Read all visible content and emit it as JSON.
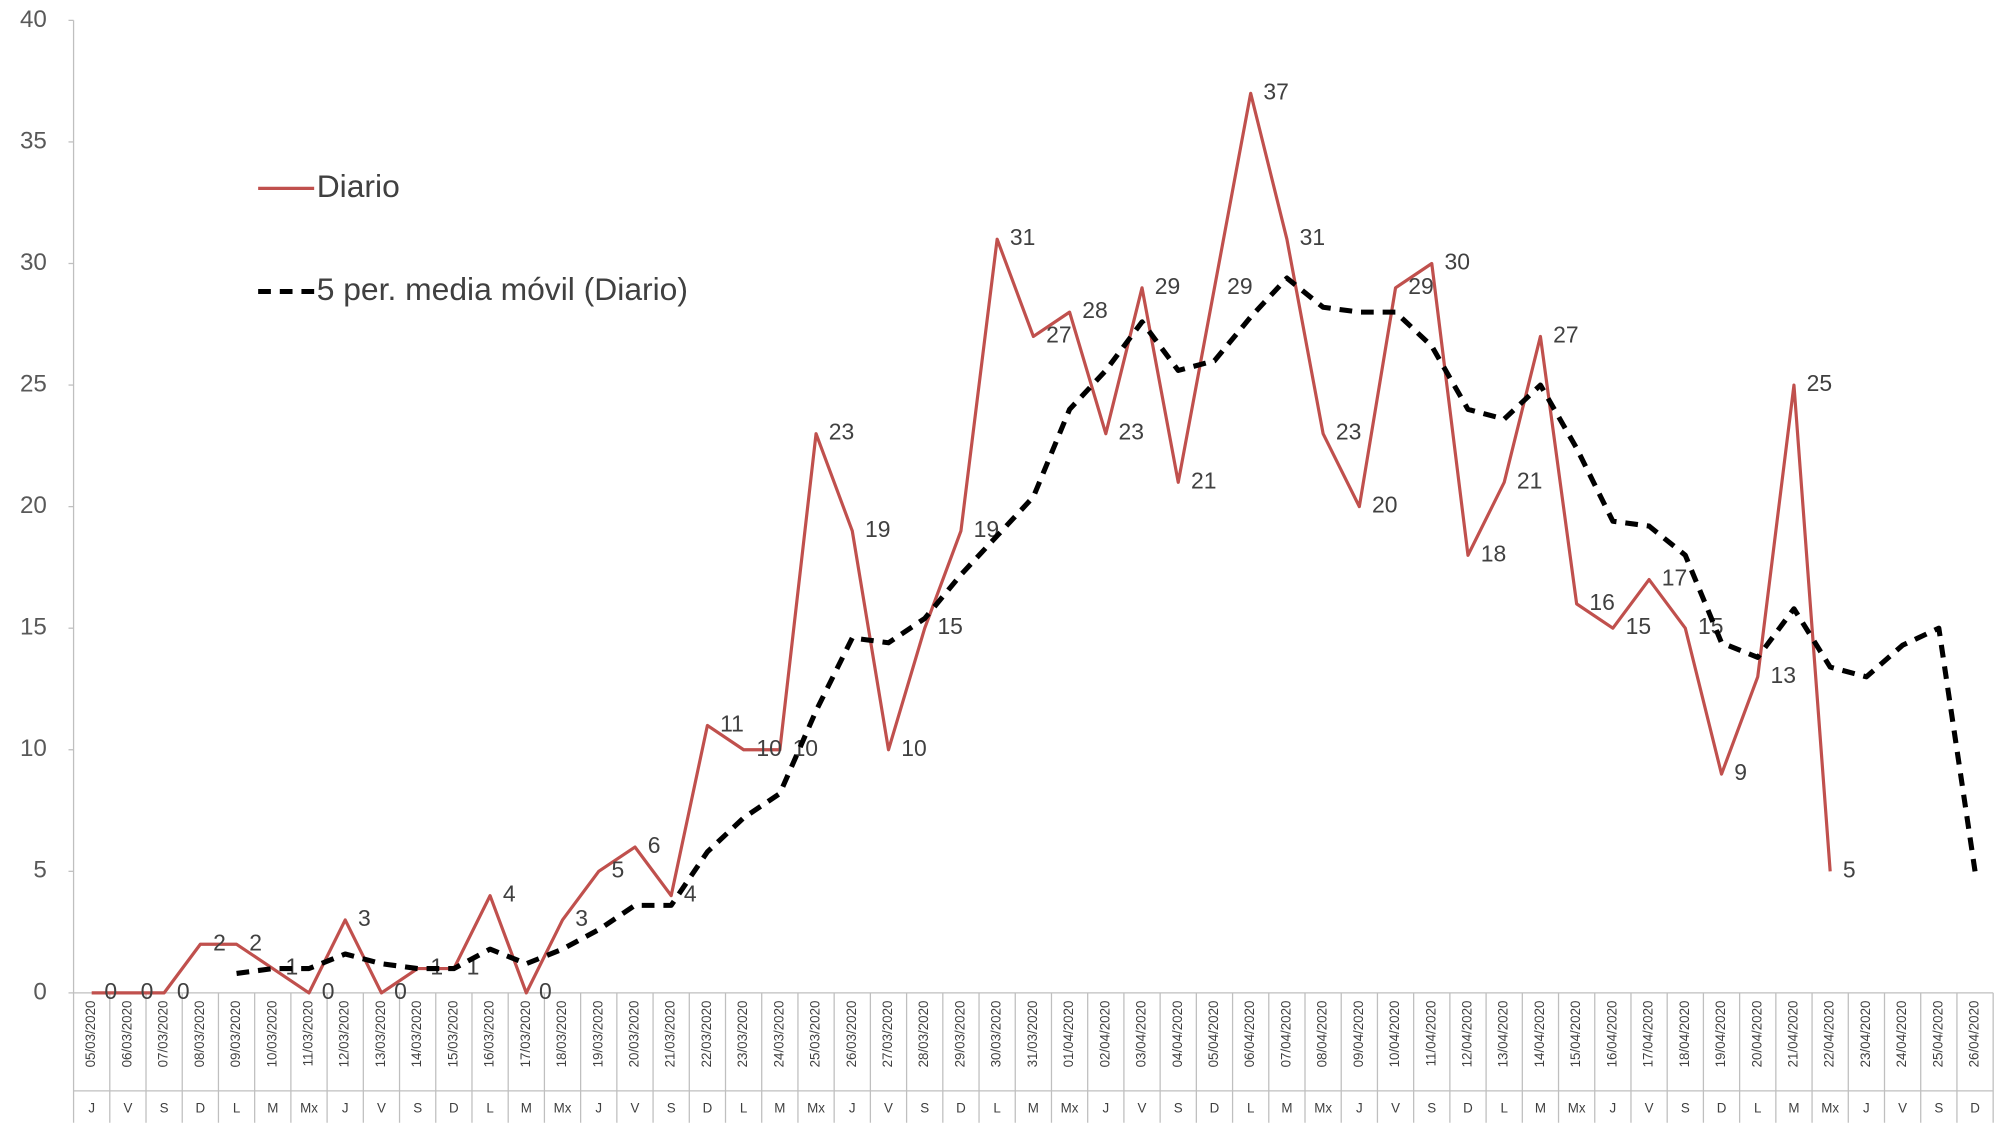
{
  "chart_data": {
    "type": "line",
    "categories": [
      "05/03/2020",
      "06/03/2020",
      "07/03/2020",
      "08/03/2020",
      "09/03/2020",
      "10/03/2020",
      "11/03/2020",
      "12/03/2020",
      "13/03/2020",
      "14/03/2020",
      "15/03/2020",
      "16/03/2020",
      "17/03/2020",
      "18/03/2020",
      "19/03/2020",
      "20/03/2020",
      "21/03/2020",
      "22/03/2020",
      "23/03/2020",
      "24/03/2020",
      "25/03/2020",
      "26/03/2020",
      "27/03/2020",
      "28/03/2020",
      "29/03/2020",
      "30/03/2020",
      "31/03/2020",
      "01/04/2020",
      "02/04/2020",
      "03/04/2020",
      "04/04/2020",
      "05/04/2020",
      "06/04/2020",
      "07/04/2020",
      "08/04/2020",
      "09/04/2020",
      "10/04/2020",
      "11/04/2020",
      "12/04/2020",
      "13/04/2020",
      "14/04/2020",
      "15/04/2020",
      "16/04/2020",
      "17/04/2020",
      "18/04/2020",
      "19/04/2020",
      "20/04/2020",
      "21/04/2020",
      "22/04/2020",
      "23/04/2020",
      "24/04/2020",
      "25/04/2020",
      "26/04/2020"
    ],
    "weekdays": [
      "J",
      "V",
      "S",
      "D",
      "L",
      "M",
      "Mx",
      "J",
      "V",
      "S",
      "D",
      "L",
      "M",
      "Mx",
      "J",
      "V",
      "S",
      "D",
      "L",
      "M",
      "Mx",
      "J",
      "V",
      "S",
      "D",
      "L",
      "M",
      "Mx",
      "J",
      "V",
      "S",
      "D",
      "L",
      "M",
      "Mx",
      "J",
      "V",
      "S",
      "D",
      "L",
      "M",
      "Mx",
      "J",
      "V",
      "S",
      "D",
      "L",
      "M",
      "Mx",
      "J",
      "V",
      "S",
      "D"
    ],
    "series": [
      {
        "name": "Diario",
        "color": "#c0504d",
        "line_style": "solid",
        "data_labels": true,
        "values": [
          0,
          0,
          0,
          2,
          2,
          1,
          0,
          3,
          0,
          1,
          1,
          4,
          0,
          3,
          5,
          6,
          4,
          11,
          10,
          10,
          23,
          19,
          10,
          15,
          19,
          31,
          27,
          28,
          23,
          29,
          21,
          29,
          37,
          31,
          23,
          20,
          29,
          30,
          18,
          21,
          27,
          16,
          15,
          17,
          15,
          9,
          13,
          25,
          5,
          null,
          null,
          null,
          null
        ]
      },
      {
        "name": "5 per. media móvil (Diario)",
        "color": "#000000",
        "line_style": "dashed",
        "data_labels": false,
        "values": [
          null,
          null,
          null,
          null,
          0.8,
          1.0,
          1.0,
          1.6,
          1.2,
          1.0,
          1.0,
          1.8,
          1.2,
          1.8,
          2.6,
          3.6,
          3.6,
          5.8,
          7.2,
          8.2,
          11.6,
          14.6,
          14.4,
          15.4,
          17.2,
          18.8,
          20.4,
          24,
          25.6,
          27.6,
          25.6,
          26,
          27.8,
          29.4,
          28.2,
          28,
          28,
          26.6,
          24,
          23.6,
          25,
          22.4,
          19.4,
          19.2,
          18,
          14.4,
          13.8,
          15.8,
          13.4,
          13,
          14.3,
          15,
          5
        ]
      }
    ],
    "ylim": [
      0,
      40
    ],
    "yticks": [
      0,
      5,
      10,
      15,
      20,
      25,
      30,
      35,
      40
    ],
    "grid": false,
    "legend": "upper left"
  }
}
